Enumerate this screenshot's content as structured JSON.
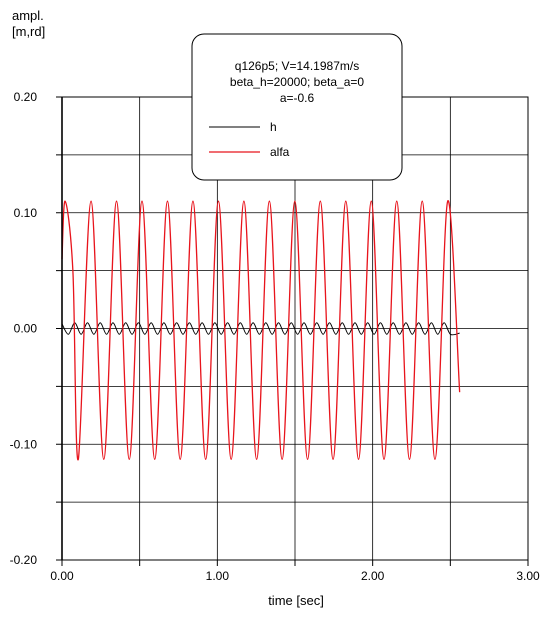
{
  "chart_data": {
    "type": "line",
    "title_lines": [
      "q126p5; V=14.1987m/s",
      "beta_h=20000; beta_a=0",
      "a=-0.6"
    ],
    "xlabel": "time [sec]",
    "ylabel_lines": [
      "ampl.",
      "[m,rd]"
    ],
    "xlim": [
      0,
      3
    ],
    "ylim": [
      -0.2,
      0.2
    ],
    "x_ticks": [
      0,
      0.5,
      1,
      1.5,
      2,
      2.5,
      3
    ],
    "x_tick_labels": [
      "0.00",
      "1.00",
      "2.00",
      "3.00"
    ],
    "x_tick_label_values": [
      0,
      1,
      2,
      3
    ],
    "y_ticks": [
      -0.2,
      -0.15,
      -0.1,
      -0.05,
      0,
      0.05,
      0.1,
      0.15,
      0.2
    ],
    "y_tick_labels": [
      "-0.20",
      "-0.10",
      "0.00",
      "0.10",
      "0.20"
    ],
    "y_tick_label_values": [
      -0.2,
      -0.1,
      0,
      0.1,
      0.2
    ],
    "grid": true,
    "legend_placement": "top-right",
    "series": [
      {
        "name": "h",
        "color": "#000000",
        "x_start": 0,
        "x_end": 2.56,
        "period": 0.164,
        "values": [
          [
            0,
            0.004
          ],
          [
            0.041,
            -0.005
          ],
          [
            0.082,
            0.005
          ],
          [
            0.123,
            -0.005
          ],
          [
            0.164,
            0.005
          ],
          [
            0.205,
            -0.005
          ],
          [
            0.246,
            0.005
          ],
          [
            0.287,
            -0.005
          ],
          [
            0.328,
            0.005
          ],
          [
            0.369,
            -0.005
          ],
          [
            0.41,
            0.005
          ],
          [
            0.451,
            -0.005
          ],
          [
            0.492,
            0.005
          ],
          [
            0.533,
            -0.005
          ],
          [
            0.574,
            0.005
          ],
          [
            0.615,
            -0.005
          ],
          [
            0.656,
            0.005
          ],
          [
            0.697,
            -0.005
          ],
          [
            0.738,
            0.005
          ],
          [
            0.779,
            -0.005
          ],
          [
            0.82,
            0.005
          ],
          [
            0.861,
            -0.005
          ],
          [
            0.902,
            0.005
          ],
          [
            0.943,
            -0.005
          ],
          [
            0.984,
            0.005
          ],
          [
            1.025,
            -0.005
          ],
          [
            1.066,
            0.005
          ],
          [
            1.107,
            -0.005
          ],
          [
            1.148,
            0.005
          ],
          [
            1.189,
            -0.005
          ],
          [
            1.23,
            0.005
          ],
          [
            1.271,
            -0.005
          ],
          [
            1.312,
            0.005
          ],
          [
            1.353,
            -0.005
          ],
          [
            1.394,
            0.005
          ],
          [
            1.435,
            -0.005
          ],
          [
            1.476,
            0.005
          ],
          [
            1.517,
            -0.005
          ],
          [
            1.558,
            0.005
          ],
          [
            1.599,
            -0.005
          ],
          [
            1.64,
            0.005
          ],
          [
            1.681,
            -0.005
          ],
          [
            1.722,
            0.005
          ],
          [
            1.763,
            -0.005
          ],
          [
            1.804,
            0.005
          ],
          [
            1.845,
            -0.005
          ],
          [
            1.886,
            0.005
          ],
          [
            1.927,
            -0.005
          ],
          [
            1.968,
            0.005
          ],
          [
            2.009,
            -0.005
          ],
          [
            2.05,
            0.005
          ],
          [
            2.091,
            -0.005
          ],
          [
            2.132,
            0.005
          ],
          [
            2.173,
            -0.005
          ],
          [
            2.214,
            0.005
          ],
          [
            2.255,
            -0.005
          ],
          [
            2.296,
            0.005
          ],
          [
            2.337,
            -0.005
          ],
          [
            2.378,
            0.005
          ],
          [
            2.419,
            -0.005
          ],
          [
            2.46,
            0.005
          ],
          [
            2.501,
            -0.005
          ],
          [
            2.56,
            -0.004
          ]
        ]
      },
      {
        "name": "alfa",
        "color": "#e8141c",
        "x_start": 0,
        "x_end": 2.56,
        "period": 0.164,
        "values": [
          [
            0,
            0.06
          ],
          [
            0.02,
            0.11
          ],
          [
            0.07,
            0.05
          ],
          [
            0.105,
            -0.113
          ],
          [
            0.187,
            0.11
          ],
          [
            0.269,
            -0.113
          ],
          [
            0.351,
            0.11
          ],
          [
            0.433,
            -0.113
          ],
          [
            0.515,
            0.11
          ],
          [
            0.597,
            -0.113
          ],
          [
            0.679,
            0.11
          ],
          [
            0.761,
            -0.113
          ],
          [
            0.843,
            0.11
          ],
          [
            0.925,
            -0.113
          ],
          [
            1.007,
            0.11
          ],
          [
            1.089,
            -0.113
          ],
          [
            1.171,
            0.11
          ],
          [
            1.253,
            -0.113
          ],
          [
            1.335,
            0.11
          ],
          [
            1.417,
            -0.113
          ],
          [
            1.499,
            0.11
          ],
          [
            1.581,
            -0.113
          ],
          [
            1.663,
            0.11
          ],
          [
            1.745,
            -0.113
          ],
          [
            1.827,
            0.11
          ],
          [
            1.909,
            -0.113
          ],
          [
            1.991,
            0.11
          ],
          [
            2.073,
            -0.113
          ],
          [
            2.155,
            0.11
          ],
          [
            2.237,
            -0.113
          ],
          [
            2.319,
            0.11
          ],
          [
            2.401,
            -0.113
          ],
          [
            2.483,
            0.11
          ],
          [
            2.56,
            -0.055
          ]
        ]
      }
    ]
  }
}
